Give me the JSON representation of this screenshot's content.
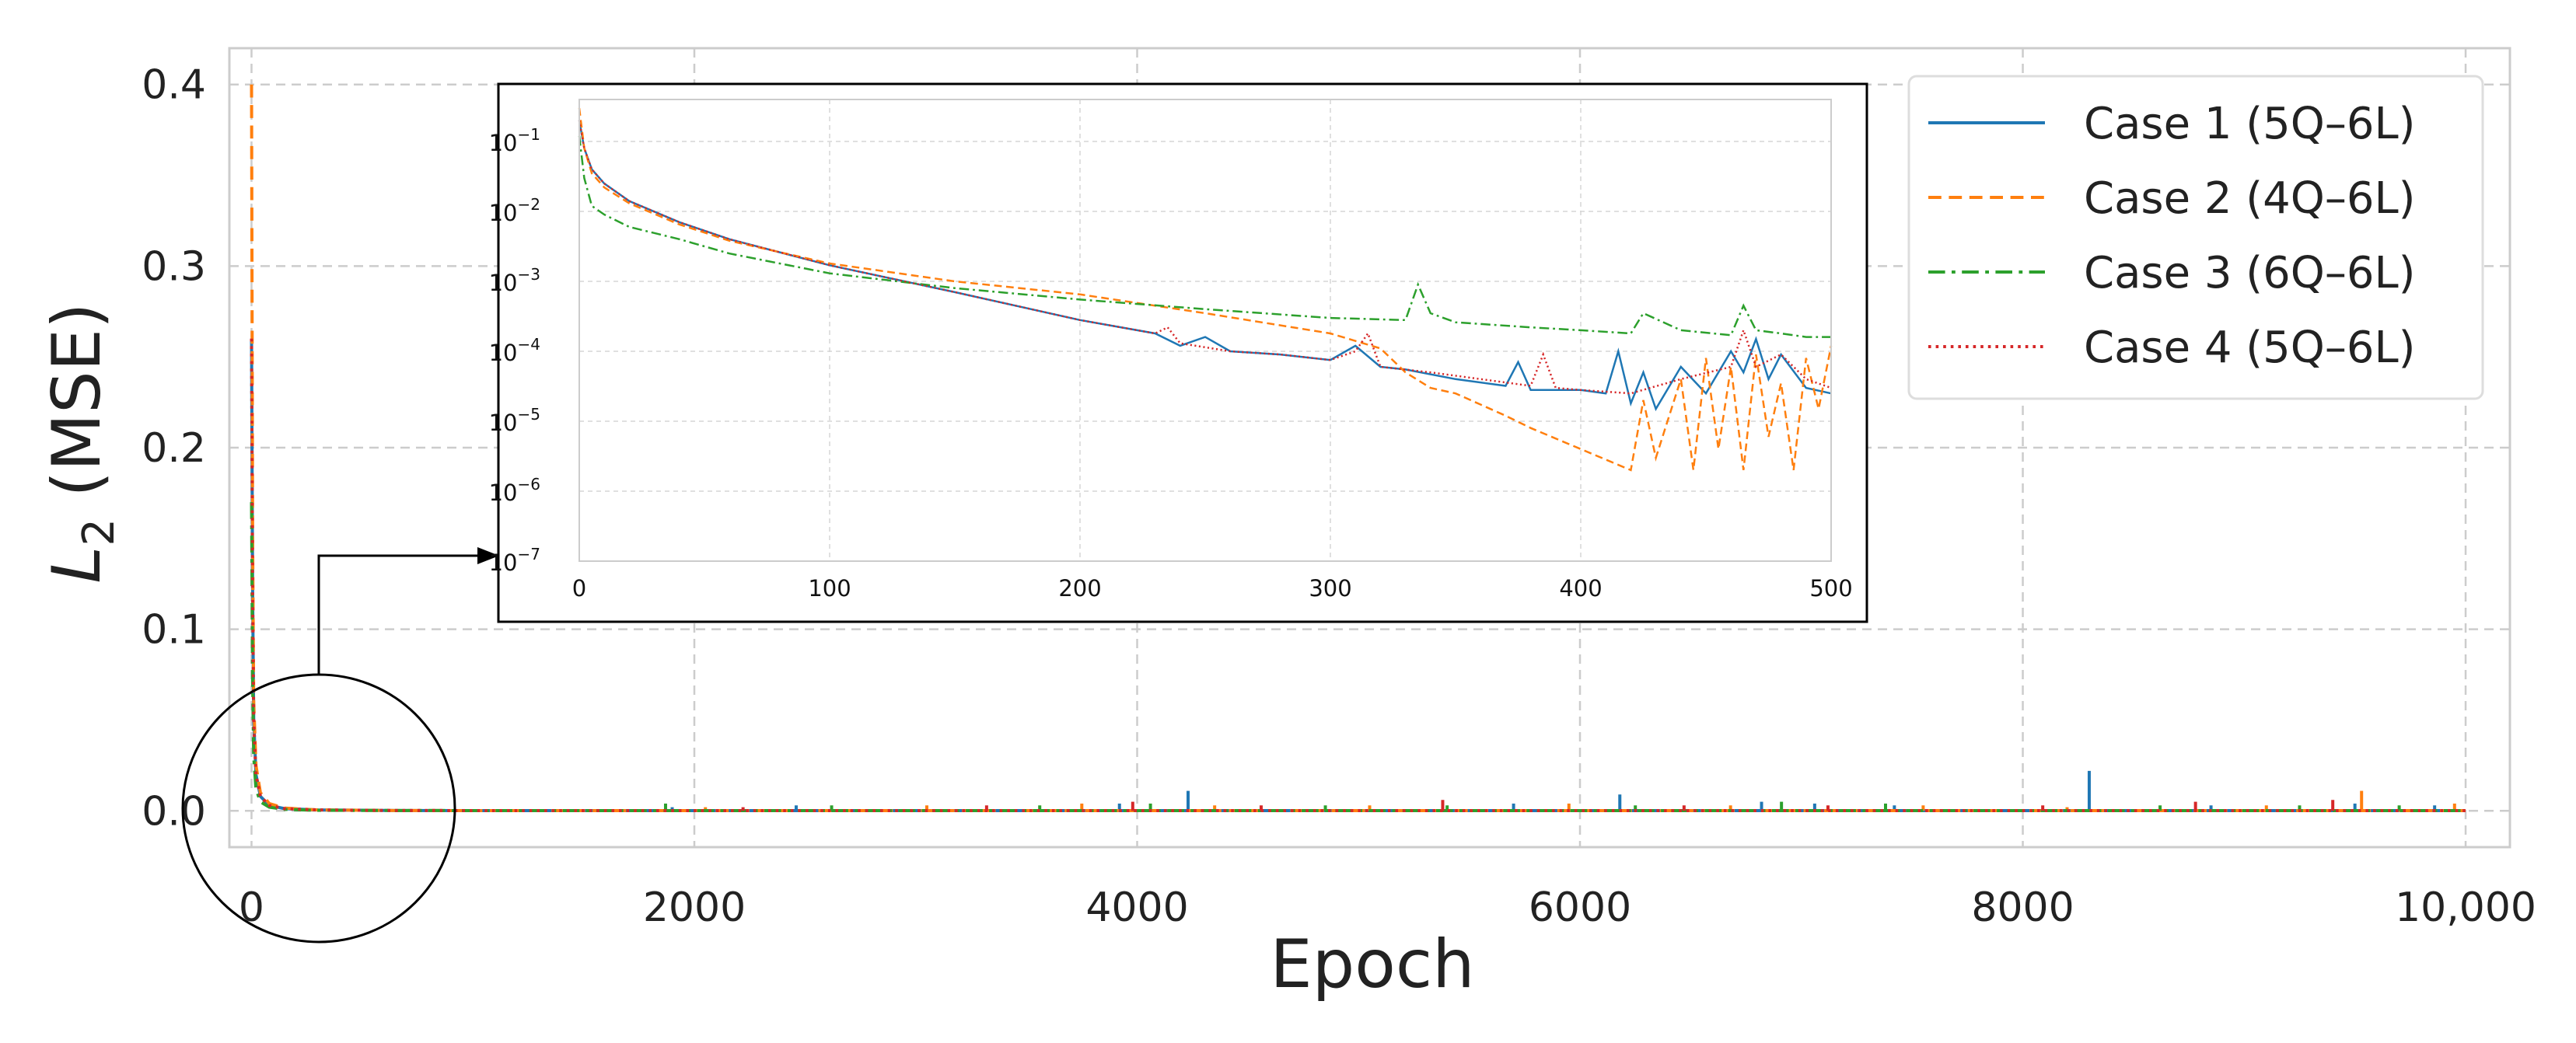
{
  "chart_data": [
    {
      "type": "line",
      "xlabel": "Epoch",
      "ylabel": "L2 (MSE)",
      "ylabel_parts": {
        "symbol": "L",
        "subscript": "2",
        "rest": "(MSE)"
      },
      "xlim": [
        -100,
        10200
      ],
      "ylim": [
        -0.02,
        0.42
      ],
      "xticks": [
        0,
        2000,
        4000,
        6000,
        8000,
        10000
      ],
      "xtick_labels": [
        "0",
        "2000",
        "4000",
        "6000",
        "8000",
        "10,000"
      ],
      "yticks": [
        0.0,
        0.1,
        0.2,
        0.3,
        0.4
      ],
      "ytick_labels": [
        "0.0",
        "0.1",
        "0.2",
        "0.3",
        "0.4"
      ],
      "grid": true,
      "legend_position": "top-right",
      "series": [
        {
          "name": "Case 1 (5Q–6L)",
          "color": "#1f77b4",
          "dash": "solid",
          "x": [
            0,
            5,
            10,
            20,
            40,
            80,
            150,
            300,
            600,
            1000,
            2000,
            4000,
            6000,
            8000,
            10000
          ],
          "y": [
            0.26,
            0.12,
            0.05,
            0.02,
            0.008,
            0.003,
            0.0012,
            0.0005,
            0.0002,
            0.0001,
            0.0001,
            0.0001,
            0.0001,
            0.0001,
            0.0001
          ],
          "spikes": [
            [
              1900,
              0.002
            ],
            [
              2460,
              0.003
            ],
            [
              3920,
              0.004
            ],
            [
              4230,
              0.011
            ],
            [
              5700,
              0.004
            ],
            [
              6180,
              0.009
            ],
            [
              6820,
              0.005
            ],
            [
              7060,
              0.004
            ],
            [
              7420,
              0.003
            ],
            [
              8300,
              0.022
            ],
            [
              8850,
              0.003
            ],
            [
              9500,
              0.004
            ],
            [
              9860,
              0.003
            ]
          ]
        },
        {
          "name": "Case 2 (4Q–6L)",
          "color": "#ff7f0e",
          "dash": "dashed",
          "x": [
            0,
            5,
            10,
            20,
            40,
            80,
            150,
            300,
            600,
            1000,
            2000,
            4000,
            6000,
            8000,
            10000
          ],
          "y": [
            0.4,
            0.15,
            0.06,
            0.025,
            0.01,
            0.004,
            0.0015,
            0.0005,
            0.0002,
            0.0001,
            0.0001,
            0.0001,
            0.0001,
            0.0001,
            0.0001
          ],
          "spikes": [
            [
              2050,
              0.002
            ],
            [
              3050,
              0.003
            ],
            [
              3750,
              0.004
            ],
            [
              4350,
              0.003
            ],
            [
              5050,
              0.003
            ],
            [
              5950,
              0.004
            ],
            [
              6680,
              0.003
            ],
            [
              7550,
              0.003
            ],
            [
              8200,
              0.002
            ],
            [
              9100,
              0.003
            ],
            [
              9530,
              0.011
            ],
            [
              9950,
              0.004
            ]
          ]
        },
        {
          "name": "Case 3 (6Q–6L)",
          "color": "#2ca02c",
          "dash": "dashdot",
          "x": [
            0,
            5,
            10,
            20,
            40,
            80,
            150,
            300,
            600,
            1000,
            2000,
            4000,
            6000,
            8000,
            10000
          ],
          "y": [
            0.17,
            0.07,
            0.03,
            0.012,
            0.005,
            0.002,
            0.0008,
            0.0003,
            0.0002,
            0.0001,
            0.0001,
            0.0001,
            0.0001,
            0.0001,
            0.0001
          ],
          "spikes": [
            [
              1870,
              0.004
            ],
            [
              2620,
              0.003
            ],
            [
              3560,
              0.003
            ],
            [
              4060,
              0.004
            ],
            [
              4850,
              0.003
            ],
            [
              5400,
              0.003
            ],
            [
              6250,
              0.003
            ],
            [
              6910,
              0.005
            ],
            [
              7380,
              0.004
            ],
            [
              8620,
              0.003
            ],
            [
              9250,
              0.003
            ],
            [
              9700,
              0.003
            ]
          ]
        },
        {
          "name": "Case 4 (5Q–6L)",
          "color": "#d62728",
          "dash": "dotted",
          "x": [
            0,
            5,
            10,
            20,
            40,
            80,
            150,
            300,
            600,
            1000,
            2000,
            4000,
            6000,
            8000,
            10000
          ],
          "y": [
            0.26,
            0.12,
            0.05,
            0.02,
            0.008,
            0.003,
            0.0012,
            0.0005,
            0.0002,
            0.0001,
            0.0001,
            0.0001,
            0.0001,
            0.0001,
            0.0001
          ],
          "spikes": [
            [
              2220,
              0.002
            ],
            [
              3320,
              0.003
            ],
            [
              3980,
              0.005
            ],
            [
              4560,
              0.003
            ],
            [
              5380,
              0.006
            ],
            [
              6470,
              0.003
            ],
            [
              7120,
              0.003
            ],
            [
              8090,
              0.003
            ],
            [
              8780,
              0.005
            ],
            [
              9400,
              0.006
            ]
          ]
        }
      ]
    },
    {
      "type": "line",
      "xlim": [
        0,
        500
      ],
      "ylim_log10": [
        -7,
        -0.4
      ],
      "yscale": "log",
      "xticks": [
        0,
        100,
        200,
        300,
        400,
        500
      ],
      "xtick_labels": [
        "0",
        "100",
        "200",
        "300",
        "400",
        "500"
      ],
      "yticks_exponent": [
        -1,
        -2,
        -3,
        -4,
        -5,
        -6,
        -7
      ],
      "ytick_base": "10",
      "ytick_exponents": [
        "−1",
        "−2",
        "−3",
        "−4",
        "−5",
        "−6",
        "−7"
      ],
      "grid": true,
      "series": [
        {
          "name": "Case 1 (5Q–6L)",
          "color": "#1f77b4",
          "dash": "solid",
          "x": [
            0,
            2,
            5,
            10,
            20,
            40,
            60,
            100,
            150,
            200,
            230,
            240,
            250,
            260,
            280,
            300,
            310,
            320,
            330,
            350,
            370,
            375,
            380,
            400,
            410,
            415,
            420,
            425,
            430,
            440,
            450,
            460,
            465,
            470,
            475,
            480,
            490,
            500
          ],
          "y": [
            0.2,
            0.08,
            0.04,
            0.025,
            0.014,
            0.007,
            0.004,
            0.0017,
            0.0007,
            0.00028,
            0.00018,
            0.00012,
            0.00016,
            0.0001,
            9e-05,
            7.5e-05,
            0.00012,
            6e-05,
            5.5e-05,
            4e-05,
            3.2e-05,
            7e-05,
            2.8e-05,
            2.8e-05,
            2.5e-05,
            0.0001,
            1.8e-05,
            5e-05,
            1.5e-05,
            6e-05,
            2.5e-05,
            0.0001,
            5e-05,
            0.00015,
            4e-05,
            9e-05,
            3e-05,
            2.5e-05
          ]
        },
        {
          "name": "Case 2 (4Q–6L)",
          "color": "#ff7f0e",
          "dash": "dashed",
          "x": [
            0,
            2,
            5,
            10,
            20,
            40,
            60,
            100,
            150,
            200,
            250,
            300,
            320,
            330,
            340,
            350,
            370,
            380,
            400,
            420,
            425,
            430,
            440,
            445,
            450,
            455,
            460,
            465,
            470,
            475,
            480,
            485,
            490,
            495,
            500
          ],
          "y": [
            0.3,
            0.08,
            0.035,
            0.022,
            0.013,
            0.0065,
            0.0038,
            0.0018,
            0.001,
            0.00065,
            0.00035,
            0.00018,
            0.00011,
            5e-05,
            3e-05,
            2.5e-05,
            1.2e-05,
            8e-06,
            4e-06,
            2e-06,
            2e-05,
            3e-06,
            4e-05,
            2e-06,
            8e-05,
            4e-06,
            6e-05,
            2e-06,
            9e-05,
            6e-06,
            3.5e-05,
            2e-06,
            8e-05,
            1.5e-05,
            0.00012
          ]
        },
        {
          "name": "Case 3 (6Q–6L)",
          "color": "#2ca02c",
          "dash": "dashdot",
          "x": [
            0,
            2,
            5,
            10,
            20,
            40,
            60,
            100,
            150,
            200,
            250,
            300,
            330,
            335,
            340,
            350,
            380,
            400,
            420,
            425,
            440,
            460,
            465,
            470,
            480,
            490,
            500
          ],
          "y": [
            0.12,
            0.03,
            0.012,
            0.009,
            0.006,
            0.004,
            0.0025,
            0.0013,
            0.0008,
            0.00055,
            0.0004,
            0.0003,
            0.00028,
            0.0009,
            0.00035,
            0.00026,
            0.00022,
            0.0002,
            0.00018,
            0.00035,
            0.0002,
            0.00017,
            0.00045,
            0.0002,
            0.00018,
            0.00016,
            0.00016
          ]
        },
        {
          "name": "Case 4 (5Q–6L)",
          "color": "#d62728",
          "dash": "dotted",
          "x": [
            0,
            2,
            5,
            10,
            20,
            40,
            60,
            100,
            150,
            200,
            230,
            235,
            240,
            260,
            280,
            300,
            310,
            315,
            320,
            340,
            360,
            380,
            385,
            390,
            400,
            420,
            440,
            460,
            465,
            470,
            480,
            490,
            500
          ],
          "y": [
            0.2,
            0.08,
            0.04,
            0.025,
            0.014,
            0.007,
            0.004,
            0.0017,
            0.0007,
            0.00028,
            0.00018,
            0.00022,
            0.00013,
            0.0001,
            9e-05,
            7.5e-05,
            0.0001,
            0.00018,
            6e-05,
            5e-05,
            4e-05,
            3.2e-05,
            9e-05,
            3e-05,
            2.8e-05,
            2.5e-05,
            4e-05,
            6e-05,
            0.0002,
            6e-05,
            9e-05,
            4e-05,
            3e-05
          ]
        }
      ]
    }
  ]
}
